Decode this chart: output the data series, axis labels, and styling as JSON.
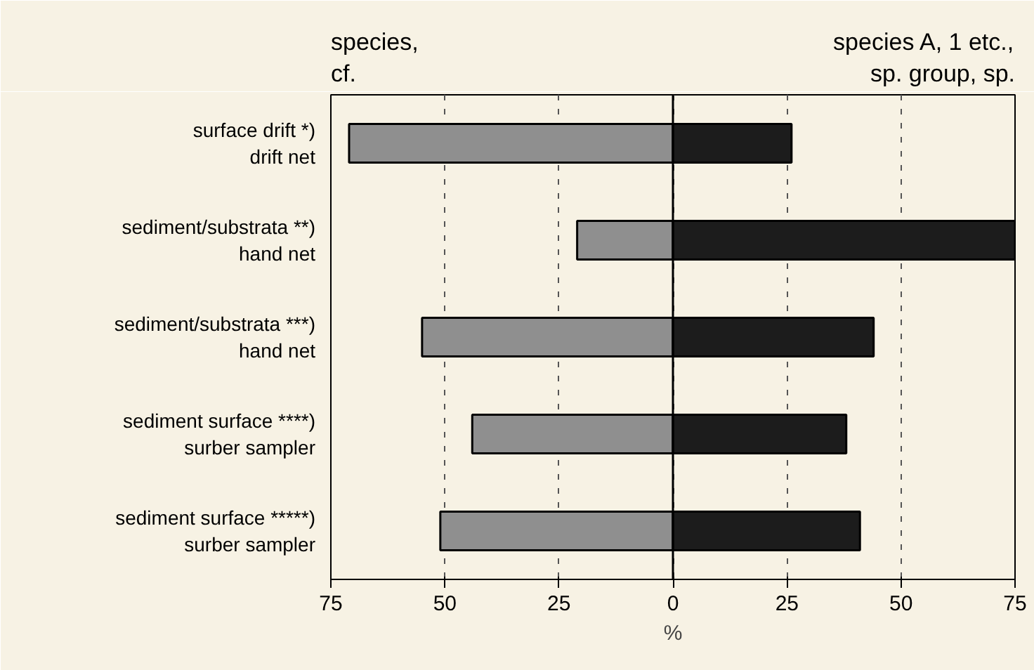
{
  "chart_data": {
    "type": "bar",
    "orientation": "horizontal",
    "categories": [
      "surface drift *)\ndrift net",
      "sediment/substrata **)\nhand net",
      "sediment/substrata ***)\nhand net",
      "sediment surface ****)\nsurber sampler",
      "sediment surface *****)\nsurber sampler"
    ],
    "series": [
      {
        "name": "species,\ncf.",
        "color": "#8f8f8f",
        "values": [
          -71,
          -21,
          -55,
          -44,
          -51
        ]
      },
      {
        "name": "species A, 1 etc.,\nsp. group, sp.",
        "color": "#1c1c1c",
        "values": [
          26,
          75,
          44,
          38,
          41
        ]
      }
    ],
    "xlabel": "%",
    "xlim": [
      -75,
      75
    ],
    "xticks": [
      {
        "value": -75,
        "label": "75"
      },
      {
        "value": -50,
        "label": "50"
      },
      {
        "value": -25,
        "label": "25"
      },
      0,
      25,
      50,
      75
    ],
    "grid": "x",
    "stacked": true
  }
}
